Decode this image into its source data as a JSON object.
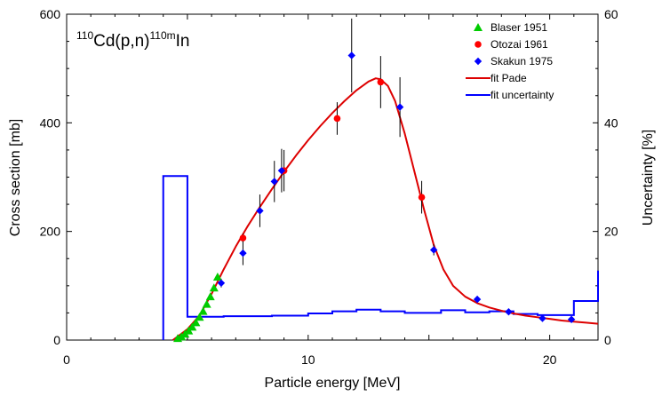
{
  "chart_data": {
    "type": "scatter",
    "reaction_label": {
      "mass_a": "110",
      "target": "Cd(p,n)",
      "mass_b": "110m",
      "product": "In"
    },
    "xlabel": "Particle energy [MeV]",
    "ylabel": "Cross section [mb]",
    "y2label": "Uncertainty [%]",
    "xlim": [
      0,
      22
    ],
    "ylim": [
      0,
      600
    ],
    "y2lim": [
      0,
      60
    ],
    "xticks": [
      0,
      10,
      20
    ],
    "yticks": [
      0,
      200,
      400,
      600
    ],
    "y2ticks": [
      0,
      20,
      40,
      60
    ],
    "legend_position": "top-right",
    "colors": {
      "blaser": "#00cc00",
      "otozai": "#ff0000",
      "skakun": "#0000ff",
      "fit": "#dd0000",
      "uncertainty": "#0000ff",
      "errorbar": "#000000"
    },
    "series": [
      {
        "name": "Blaser 1951",
        "marker": "triangle",
        "points": [
          [
            4.6,
            3
          ],
          [
            4.75,
            6
          ],
          [
            4.9,
            11
          ],
          [
            5.05,
            17
          ],
          [
            5.2,
            24
          ],
          [
            5.35,
            32
          ],
          [
            5.5,
            42
          ],
          [
            5.65,
            53
          ],
          [
            5.8,
            66
          ],
          [
            5.95,
            80
          ],
          [
            6.1,
            96
          ],
          [
            6.25,
            116
          ]
        ],
        "errors": []
      },
      {
        "name": "Otozai 1961",
        "marker": "circle",
        "points": [
          [
            7.3,
            188
          ],
          [
            9.0,
            312
          ],
          [
            11.2,
            408
          ],
          [
            13.0,
            475
          ],
          [
            14.7,
            263
          ]
        ],
        "errors": [
          8,
          38,
          30,
          48,
          30
        ]
      },
      {
        "name": "Skakun 1975",
        "marker": "diamond",
        "points": [
          [
            6.4,
            105
          ],
          [
            7.3,
            160
          ],
          [
            8.0,
            238
          ],
          [
            8.6,
            292
          ],
          [
            8.9,
            312
          ],
          [
            11.8,
            524
          ],
          [
            13.8,
            429
          ],
          [
            15.2,
            166
          ],
          [
            17.0,
            75
          ],
          [
            18.3,
            52
          ],
          [
            19.7,
            40
          ],
          [
            20.9,
            38
          ]
        ],
        "errors": [
          8,
          22,
          30,
          38,
          40,
          68,
          55,
          10,
          6,
          4,
          3,
          3
        ]
      },
      {
        "name": "fit Pade",
        "line": true,
        "x": [
          4.4,
          5.0,
          5.5,
          6.0,
          6.5,
          7.0,
          7.5,
          8.0,
          8.5,
          9.0,
          9.5,
          10.0,
          10.5,
          11.0,
          11.5,
          12.0,
          12.5,
          12.8,
          13.0,
          13.3,
          13.6,
          14.0,
          14.4,
          14.8,
          15.2,
          15.6,
          16.0,
          16.5,
          17.0,
          17.5,
          18.0,
          18.5,
          19.0,
          19.5,
          20.0,
          20.5,
          21.0,
          21.5,
          22.0
        ],
        "y": [
          0,
          20,
          45,
          85,
          130,
          172,
          210,
          245,
          278,
          310,
          340,
          368,
          394,
          418,
          440,
          460,
          476,
          482,
          480,
          468,
          440,
          380,
          310,
          240,
          175,
          130,
          100,
          80,
          68,
          60,
          54,
          49,
          45,
          42,
          39,
          36,
          34,
          32,
          30
        ]
      },
      {
        "name": "fit uncertainty",
        "line": true,
        "axis": "y2",
        "x": [
          4.0,
          4.0,
          5.0,
          5.0,
          6.5,
          6.5,
          8.5,
          8.5,
          10.0,
          10.0,
          11.0,
          11.0,
          12.0,
          12.0,
          13.0,
          13.0,
          14.0,
          14.0,
          15.5,
          15.5,
          16.5,
          16.5,
          17.5,
          17.5,
          18.5,
          18.5,
          19.5,
          19.5,
          21.0,
          21.0,
          22.0,
          22.0
        ],
        "y": [
          0,
          30.2,
          30.2,
          4.3,
          4.3,
          4.4,
          4.4,
          4.5,
          4.5,
          4.9,
          4.9,
          5.3,
          5.3,
          5.6,
          5.6,
          5.3,
          5.3,
          5.0,
          5.0,
          5.5,
          5.5,
          5.1,
          5.1,
          5.3,
          5.3,
          4.8,
          4.8,
          4.6,
          4.6,
          7.2,
          7.2,
          12.8
        ]
      }
    ]
  }
}
